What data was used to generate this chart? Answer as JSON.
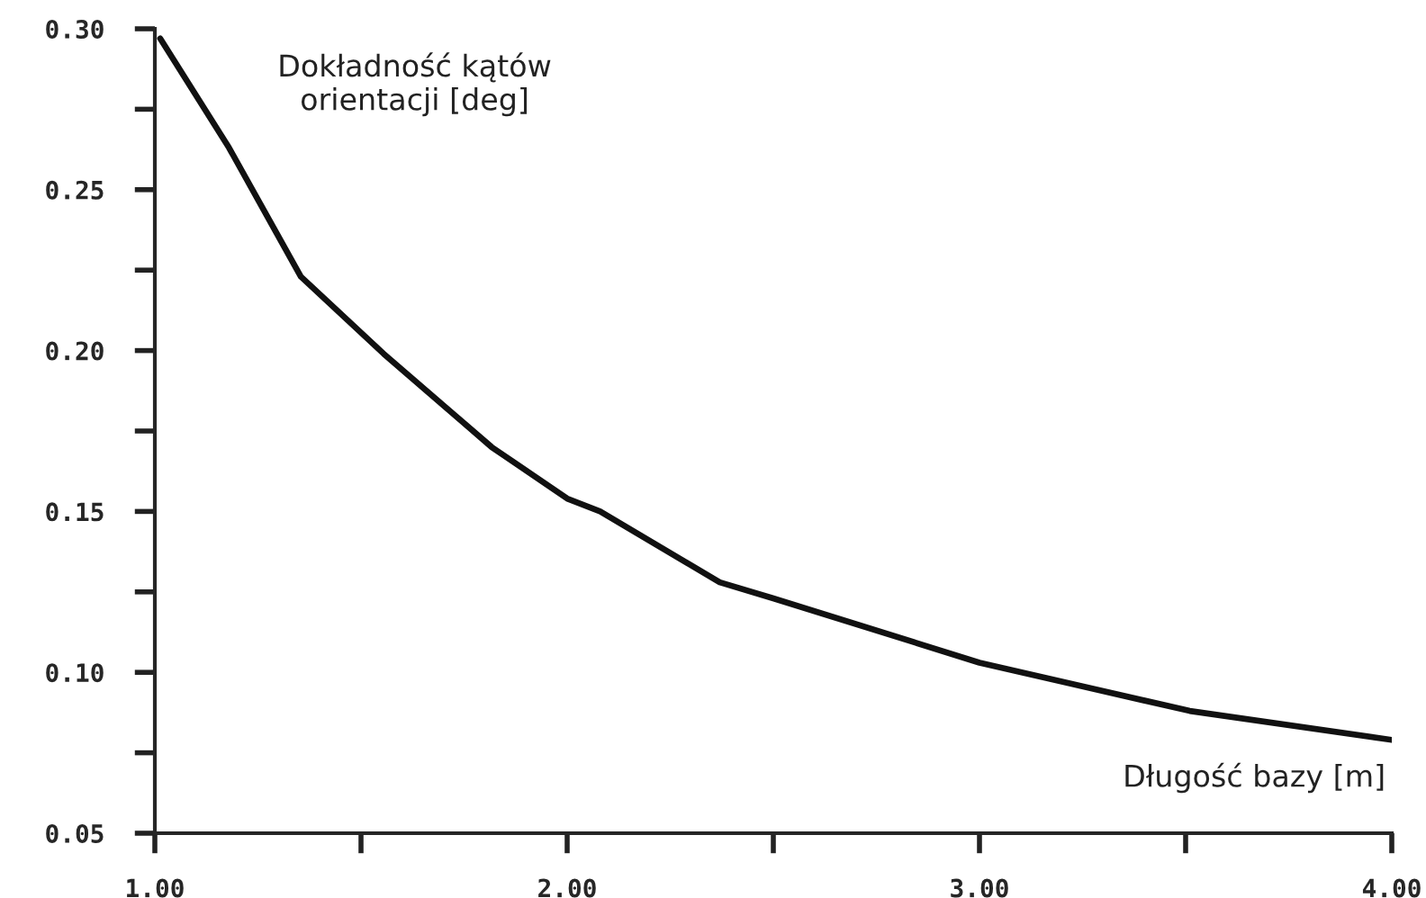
{
  "chart_data": {
    "type": "line",
    "xlabel": "Długość bazy [m]",
    "ylabel": "Dokładność kątów\norientacji [deg]",
    "x": [
      1.013,
      1.18,
      1.354,
      1.555,
      1.817,
      2.0,
      2.08,
      2.37,
      2.5,
      3.0,
      3.51,
      4.0
    ],
    "series": [
      {
        "color": "#111111",
        "values": [
          0.297,
          0.263,
          0.223,
          0.199,
          0.17,
          0.154,
          0.15,
          0.128,
          0.123,
          0.103,
          0.088,
          0.079
        ]
      }
    ],
    "xlim": [
      1.0,
      4.0
    ],
    "ylim": [
      0.05,
      0.3
    ],
    "xticks": [
      {
        "value": 1.0,
        "label": "1.00"
      },
      {
        "value": 1.5,
        "label": null
      },
      {
        "value": 2.0,
        "label": "2.00"
      },
      {
        "value": 2.5,
        "label": null
      },
      {
        "value": 3.0,
        "label": "3.00"
      },
      {
        "value": 3.5,
        "label": null
      },
      {
        "value": 4.0,
        "label": "4.00"
      }
    ],
    "yticks": [
      0.05,
      {
        "value": 0.075,
        "label": null
      },
      {
        "value": 0.1,
        "label": "0.10"
      },
      {
        "value": 0.125,
        "label": null
      },
      {
        "value": 0.15,
        "label": "0.15"
      },
      {
        "value": 0.175,
        "label": null
      },
      {
        "value": 0.2,
        "label": "0.20"
      },
      {
        "value": 0.225,
        "label": null
      },
      {
        "value": 0.25,
        "label": "0.25"
      },
      {
        "value": 0.275,
        "label": null
      },
      {
        "value": 0.3,
        "label": "0.30"
      }
    ],
    "grid": false,
    "legend": false,
    "marker": "none",
    "line_style": "solid"
  }
}
